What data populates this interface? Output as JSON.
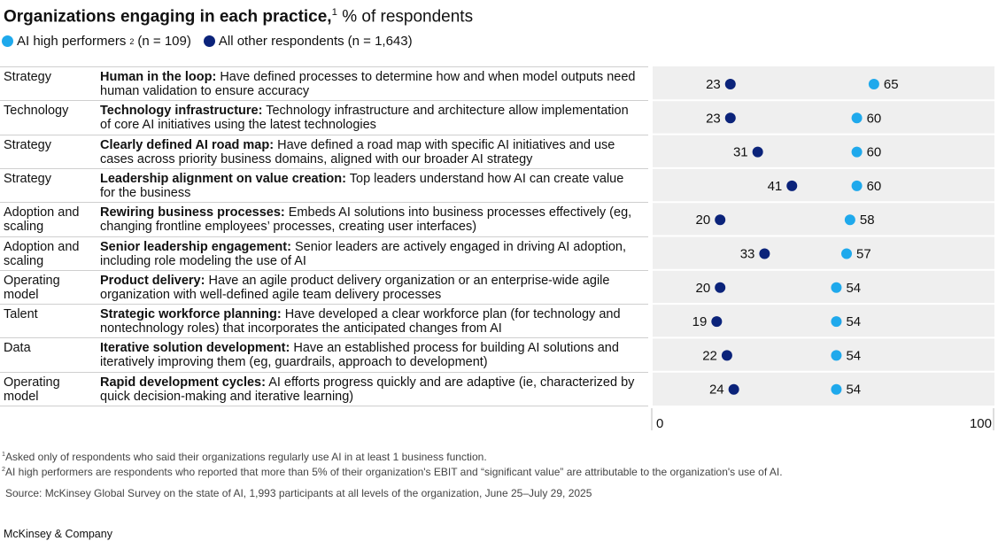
{
  "chart_data": {
    "type": "dot",
    "title": "Organizations engaging in each practice,",
    "title_footnote": "1",
    "subtitle": "% of respondents",
    "series": [
      {
        "name": "AI high performers",
        "name_footnote": "2",
        "n_label": "(n = 109)",
        "color": "#1fa9ec",
        "values": [
          65,
          60,
          60,
          60,
          58,
          57,
          54,
          54,
          54,
          54
        ]
      },
      {
        "name": "All other respondents",
        "n_label": "(n = 1,643)",
        "color": "#0b237a",
        "values": [
          23,
          23,
          31,
          41,
          20,
          33,
          20,
          19,
          22,
          24
        ]
      }
    ],
    "areas": [
      "Strategy",
      "Technology",
      "Strategy",
      "Strategy",
      "Adoption and scaling",
      "Adoption and scaling",
      "Operating model",
      "Talent",
      "Data",
      "Operating model"
    ],
    "categories": [
      "Human in the loop:",
      "Technology infrastructure:",
      "Clearly defined AI road map:",
      "Leadership alignment on value creation:",
      "Rewiring business processes:",
      "Senior leadership engagement:",
      "Product delivery:",
      "Strategic workforce planning:",
      "Iterative solution development:",
      "Rapid development cycles:"
    ],
    "descriptions": [
      "Have defined processes to determine how and when model outputs need human validation to ensure accuracy",
      "Technology infrastructure and architecture allow implemen­tation of core AI initiatives using the latest technologies",
      "Have defined a road map with specific AI initiatives and use cases across priority business domains, aligned with our broader AI strategy",
      "Top leaders understand how AI can create value for the business",
      "Embeds AI solutions into business processes effectively (eg, changing frontline employees’ processes, creating user interfaces)",
      "Senior leaders are actively engaged in driving AI adop­tion, including role modeling the use of AI",
      "Have an agile product delivery organization or an enterprise-wide agile organization with well-defined agile team delivery processes",
      "Have developed a clear workforce plan (for technology and nontechnology roles) that incorporates the anticipated changes from AI",
      "Have an established process for building AI solutions and iteratively improving them (eg, guardrails, approach to development)",
      "AI efforts progress quickly and are adaptive (ie, character­ized by quick decision-making and iterative learning)"
    ],
    "xlim": [
      0,
      100
    ],
    "xticks": [
      0,
      100
    ],
    "footnotes": [
      {
        "mark": "1",
        "text": "Asked only of respondents who said their organizations regularly use AI in at least 1 business function."
      },
      {
        "mark": "2",
        "text": "AI high performers are respondents who reported that more than 5% of their organization's EBIT and “significant value” are attributable to the organization's use of AI."
      }
    ],
    "source": "Source: McKinsey Global Survey on the state of AI, 1,993 participants at all levels of the organization, June 25–July 29, 2025",
    "brand": "McKinsey & Company"
  }
}
